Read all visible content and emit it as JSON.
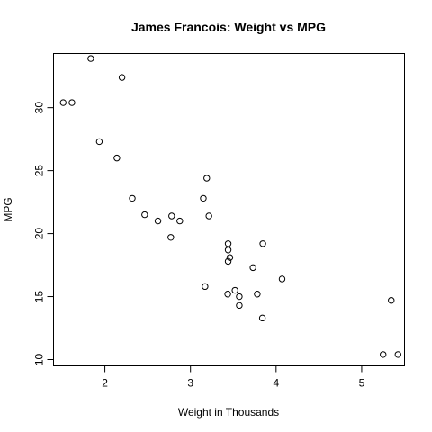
{
  "chart_data": {
    "type": "scatter",
    "title": "James Francois: Weight vs MPG",
    "xlabel": "Weight in Thousands",
    "ylabel": "MPG",
    "xlim": [
      1.4,
      5.5
    ],
    "ylim": [
      9.5,
      34.3
    ],
    "xticks": [
      2,
      3,
      4,
      5
    ],
    "yticks": [
      10,
      15,
      20,
      25,
      30
    ],
    "grid": false,
    "marker": "open-circle",
    "points": [
      {
        "x": 2.62,
        "y": 21.0
      },
      {
        "x": 2.875,
        "y": 21.0
      },
      {
        "x": 2.32,
        "y": 22.8
      },
      {
        "x": 3.215,
        "y": 21.4
      },
      {
        "x": 3.44,
        "y": 18.7
      },
      {
        "x": 3.46,
        "y": 18.1
      },
      {
        "x": 3.57,
        "y": 14.3
      },
      {
        "x": 3.19,
        "y": 24.4
      },
      {
        "x": 3.15,
        "y": 22.8
      },
      {
        "x": 3.44,
        "y": 19.2
      },
      {
        "x": 3.44,
        "y": 17.8
      },
      {
        "x": 4.07,
        "y": 16.4
      },
      {
        "x": 3.73,
        "y": 17.3
      },
      {
        "x": 3.78,
        "y": 15.2
      },
      {
        "x": 5.25,
        "y": 10.4
      },
      {
        "x": 5.424,
        "y": 10.4
      },
      {
        "x": 5.345,
        "y": 14.7
      },
      {
        "x": 2.2,
        "y": 32.4
      },
      {
        "x": 1.615,
        "y": 30.4
      },
      {
        "x": 1.835,
        "y": 33.9
      },
      {
        "x": 2.465,
        "y": 21.5
      },
      {
        "x": 3.52,
        "y": 15.5
      },
      {
        "x": 3.435,
        "y": 15.2
      },
      {
        "x": 3.84,
        "y": 13.3
      },
      {
        "x": 3.845,
        "y": 19.2
      },
      {
        "x": 1.935,
        "y": 27.3
      },
      {
        "x": 2.14,
        "y": 26.0
      },
      {
        "x": 1.513,
        "y": 30.4
      },
      {
        "x": 3.17,
        "y": 15.8
      },
      {
        "x": 2.77,
        "y": 19.7
      },
      {
        "x": 3.57,
        "y": 15.0
      },
      {
        "x": 2.78,
        "y": 21.4
      }
    ]
  }
}
